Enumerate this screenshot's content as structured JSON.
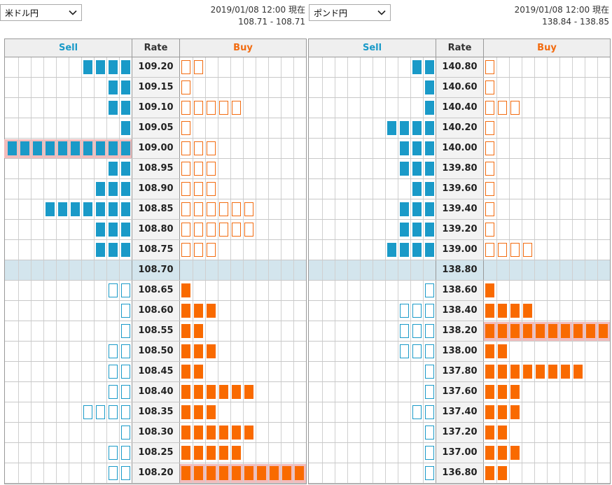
{
  "panels": [
    {
      "id": "usdjpy",
      "pair": "米ドル円",
      "timestamp": "2019/01/08 12:00 現在",
      "range": "108.71 - 108.71",
      "headers": {
        "sell": "Sell",
        "rate": "Rate",
        "buy": "Buy"
      },
      "rows": [
        {
          "rate": "109.20",
          "sell": 4,
          "buy": 2,
          "type": "upper"
        },
        {
          "rate": "109.15",
          "sell": 2,
          "buy": 1,
          "type": "upper"
        },
        {
          "rate": "109.10",
          "sell": 2,
          "buy": 5,
          "type": "upper"
        },
        {
          "rate": "109.05",
          "sell": 1,
          "buy": 1,
          "type": "upper"
        },
        {
          "rate": "109.00",
          "sell": 10,
          "buy": 3,
          "type": "upper",
          "highlight": "sell"
        },
        {
          "rate": "108.95",
          "sell": 2,
          "buy": 3,
          "type": "upper"
        },
        {
          "rate": "108.90",
          "sell": 3,
          "buy": 3,
          "type": "upper"
        },
        {
          "rate": "108.85",
          "sell": 7,
          "buy": 6,
          "type": "upper"
        },
        {
          "rate": "108.80",
          "sell": 3,
          "buy": 6,
          "type": "upper"
        },
        {
          "rate": "108.75",
          "sell": 3,
          "buy": 3,
          "type": "upper"
        },
        {
          "rate": "108.70",
          "sell": 0,
          "buy": 0,
          "type": "current"
        },
        {
          "rate": "108.65",
          "sell": 2,
          "buy": 1,
          "type": "lower"
        },
        {
          "rate": "108.60",
          "sell": 1,
          "buy": 3,
          "type": "lower"
        },
        {
          "rate": "108.55",
          "sell": 1,
          "buy": 2,
          "type": "lower"
        },
        {
          "rate": "108.50",
          "sell": 2,
          "buy": 3,
          "type": "lower"
        },
        {
          "rate": "108.45",
          "sell": 2,
          "buy": 2,
          "type": "lower"
        },
        {
          "rate": "108.40",
          "sell": 2,
          "buy": 6,
          "type": "lower"
        },
        {
          "rate": "108.35",
          "sell": 4,
          "buy": 3,
          "type": "lower"
        },
        {
          "rate": "108.30",
          "sell": 1,
          "buy": 6,
          "type": "lower"
        },
        {
          "rate": "108.25",
          "sell": 2,
          "buy": 5,
          "type": "lower"
        },
        {
          "rate": "108.20",
          "sell": 2,
          "buy": 10,
          "type": "lower",
          "highlight": "buy"
        }
      ]
    },
    {
      "id": "gbpjpy",
      "pair": "ポンド円",
      "timestamp": "2019/01/08 12:00 現在",
      "range": "138.84 - 138.85",
      "headers": {
        "sell": "Sell",
        "rate": "Rate",
        "buy": "Buy"
      },
      "rows": [
        {
          "rate": "140.80",
          "sell": 2,
          "buy": 1,
          "type": "upper"
        },
        {
          "rate": "140.60",
          "sell": 1,
          "buy": 1,
          "type": "upper"
        },
        {
          "rate": "140.40",
          "sell": 1,
          "buy": 3,
          "type": "upper"
        },
        {
          "rate": "140.20",
          "sell": 4,
          "buy": 1,
          "type": "upper"
        },
        {
          "rate": "140.00",
          "sell": 3,
          "buy": 1,
          "type": "upper"
        },
        {
          "rate": "139.80",
          "sell": 3,
          "buy": 1,
          "type": "upper"
        },
        {
          "rate": "139.60",
          "sell": 2,
          "buy": 1,
          "type": "upper"
        },
        {
          "rate": "139.40",
          "sell": 3,
          "buy": 1,
          "type": "upper"
        },
        {
          "rate": "139.20",
          "sell": 3,
          "buy": 1,
          "type": "upper"
        },
        {
          "rate": "139.00",
          "sell": 4,
          "buy": 4,
          "type": "upper"
        },
        {
          "rate": "138.80",
          "sell": 0,
          "buy": 0,
          "type": "current"
        },
        {
          "rate": "138.60",
          "sell": 1,
          "buy": 1,
          "type": "lower"
        },
        {
          "rate": "138.40",
          "sell": 3,
          "buy": 4,
          "type": "lower"
        },
        {
          "rate": "138.20",
          "sell": 3,
          "buy": 10,
          "type": "lower",
          "highlight": "buy"
        },
        {
          "rate": "138.00",
          "sell": 3,
          "buy": 2,
          "type": "lower"
        },
        {
          "rate": "137.80",
          "sell": 1,
          "buy": 8,
          "type": "lower"
        },
        {
          "rate": "137.60",
          "sell": 1,
          "buy": 3,
          "type": "lower"
        },
        {
          "rate": "137.40",
          "sell": 2,
          "buy": 3,
          "type": "lower"
        },
        {
          "rate": "137.20",
          "sell": 1,
          "buy": 2,
          "type": "lower"
        },
        {
          "rate": "137.00",
          "sell": 1,
          "buy": 3,
          "type": "lower"
        },
        {
          "rate": "136.80",
          "sell": 1,
          "buy": 2,
          "type": "lower"
        }
      ]
    }
  ],
  "colors": {
    "sell": "#1a9ac8",
    "buy": "#f96a00",
    "current_row": "#d3e5ed",
    "highlight": "#f2bcbc"
  },
  "icons": {
    "select": "chevron-down-icon"
  }
}
